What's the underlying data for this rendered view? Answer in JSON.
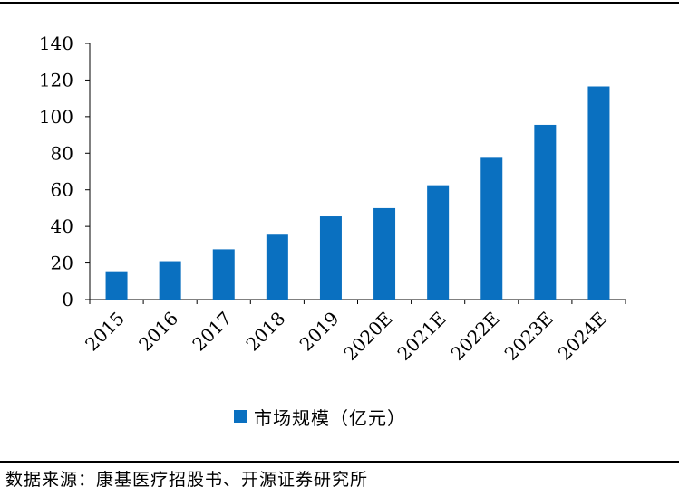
{
  "chart_data": {
    "type": "bar",
    "categories": [
      "2015",
      "2016",
      "2017",
      "2018",
      "2019",
      "2020E",
      "2021E",
      "2022E",
      "2023E",
      "2024E"
    ],
    "series": [
      {
        "name": "市场规模（亿元）",
        "values": [
          15.5,
          21,
          27.5,
          35.5,
          45.5,
          50,
          62.5,
          77.5,
          95.5,
          116.5
        ]
      }
    ],
    "ylim": [
      0,
      140
    ],
    "yticks": [
      0,
      20,
      40,
      60,
      80,
      100,
      120,
      140
    ],
    "legend": "bottom-center",
    "grid": false,
    "bar_color": "#0a70c0"
  },
  "legend": {
    "label": "市场规模（亿元）"
  },
  "source": "数据来源：康基医疗招股书、开源证券研究所"
}
